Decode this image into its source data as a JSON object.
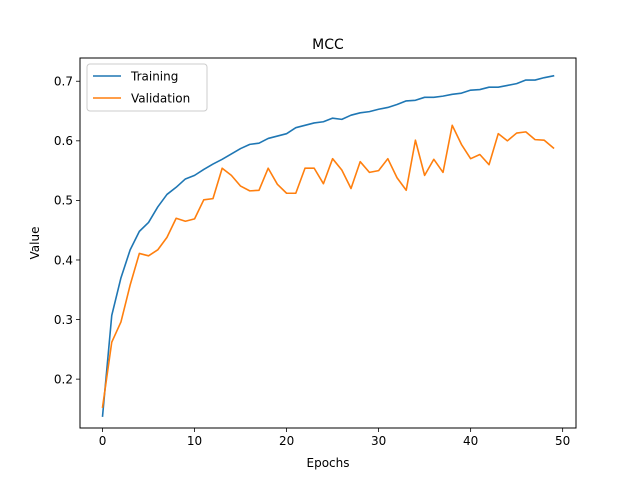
{
  "chart_data": {
    "type": "line",
    "title": "MCC",
    "xlabel": "Epochs",
    "ylabel": "Value",
    "xlim": [
      -2.45,
      51.45
    ],
    "ylim": [
      0.118,
      0.739
    ],
    "xticks": [
      0,
      10,
      20,
      30,
      40,
      50
    ],
    "yticks": [
      0.2,
      0.3,
      0.4,
      0.5,
      0.6,
      0.7
    ],
    "xtick_labels": [
      "0",
      "10",
      "20",
      "30",
      "40",
      "50"
    ],
    "ytick_labels": [
      "0.2",
      "0.3",
      "0.4",
      "0.5",
      "0.6",
      "0.7"
    ],
    "grid": false,
    "legend": {
      "position": "top-left"
    },
    "x": [
      0,
      1,
      2,
      3,
      4,
      5,
      6,
      7,
      8,
      9,
      10,
      11,
      12,
      13,
      14,
      15,
      16,
      17,
      18,
      19,
      20,
      21,
      22,
      23,
      24,
      25,
      26,
      27,
      28,
      29,
      30,
      31,
      32,
      33,
      34,
      35,
      36,
      37,
      38,
      39,
      40,
      41,
      42,
      43,
      44,
      45,
      46,
      47,
      48,
      49
    ],
    "series": [
      {
        "name": "Training",
        "color": "#1f77b4",
        "values": [
          0.138,
          0.307,
          0.37,
          0.417,
          0.448,
          0.463,
          0.489,
          0.51,
          0.522,
          0.536,
          0.542,
          0.552,
          0.561,
          0.569,
          0.578,
          0.587,
          0.594,
          0.596,
          0.604,
          0.608,
          0.612,
          0.622,
          0.626,
          0.63,
          0.632,
          0.638,
          0.636,
          0.643,
          0.647,
          0.649,
          0.653,
          0.656,
          0.661,
          0.667,
          0.668,
          0.673,
          0.673,
          0.675,
          0.678,
          0.68,
          0.685,
          0.686,
          0.69,
          0.69,
          0.693,
          0.696,
          0.702,
          0.702,
          0.706,
          0.709
        ]
      },
      {
        "name": "Validation",
        "color": "#ff7f0e",
        "values": [
          0.153,
          0.262,
          0.296,
          0.358,
          0.411,
          0.407,
          0.417,
          0.438,
          0.47,
          0.465,
          0.469,
          0.501,
          0.503,
          0.554,
          0.542,
          0.524,
          0.516,
          0.517,
          0.554,
          0.527,
          0.512,
          0.512,
          0.554,
          0.554,
          0.528,
          0.57,
          0.551,
          0.52,
          0.565,
          0.547,
          0.55,
          0.57,
          0.538,
          0.517,
          0.601,
          0.542,
          0.569,
          0.547,
          0.626,
          0.594,
          0.57,
          0.577,
          0.56,
          0.612,
          0.6,
          0.613,
          0.615,
          0.602,
          0.601,
          0.588
        ]
      }
    ]
  }
}
